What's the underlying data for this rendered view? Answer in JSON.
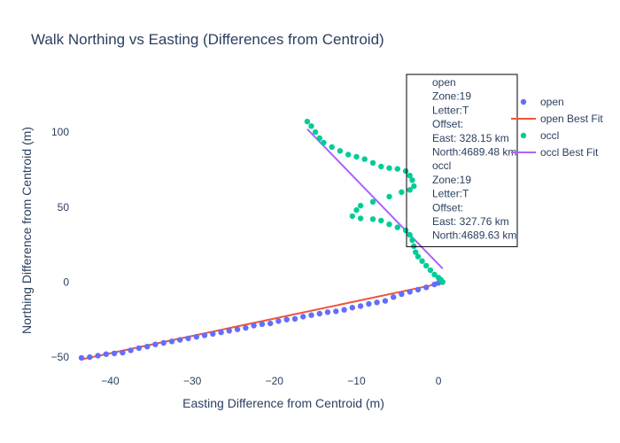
{
  "chart_data": {
    "type": "scatter",
    "title": "Walk Northing vs Easting (Differences from Centroid)",
    "xlabel": "Easting Difference from Centroid (m)",
    "ylabel": "Northing Difference from Centroid (m)",
    "xlim": [
      -44.8,
      7.0
    ],
    "ylim": [
      -60.0,
      129.0
    ],
    "xticks": [
      -40,
      -30,
      -20,
      -10,
      0
    ],
    "yticks": [
      -50,
      0,
      50,
      100
    ],
    "xtick_labels": [
      "−40",
      "−30",
      "−20",
      "−10",
      "0"
    ],
    "ytick_labels": [
      "−50",
      "0",
      "50",
      "100"
    ],
    "grid": false,
    "legend_position": "top-right",
    "series": [
      {
        "name": "open",
        "mode": "markers",
        "color": "#636efa",
        "points": [
          [
            -43.5,
            -50.5
          ],
          [
            -42.5,
            -50.0
          ],
          [
            -41.5,
            -49.0
          ],
          [
            -40.5,
            -48.0
          ],
          [
            -39.5,
            -47.5
          ],
          [
            -38.5,
            -47.0
          ],
          [
            -37.5,
            -45.5
          ],
          [
            -36.5,
            -44.0
          ],
          [
            -35.5,
            -43.0
          ],
          [
            -34.5,
            -41.5
          ],
          [
            -33.5,
            -40.5
          ],
          [
            -32.5,
            -39.5
          ],
          [
            -31.5,
            -38.5
          ],
          [
            -30.5,
            -37.5
          ],
          [
            -29.5,
            -36.5
          ],
          [
            -28.5,
            -35.5
          ],
          [
            -27.5,
            -34.5
          ],
          [
            -26.5,
            -33.5
          ],
          [
            -25.5,
            -32.5
          ],
          [
            -24.5,
            -31.5
          ],
          [
            -23.5,
            -30.5
          ],
          [
            -22.5,
            -29.0
          ],
          [
            -21.5,
            -28.0
          ],
          [
            -20.5,
            -27.5
          ],
          [
            -19.5,
            -26.0
          ],
          [
            -18.5,
            -25.0
          ],
          [
            -17.5,
            -24.5
          ],
          [
            -16.5,
            -23.0
          ],
          [
            -15.5,
            -22.0
          ],
          [
            -14.5,
            -21.0
          ],
          [
            -13.5,
            -20.0
          ],
          [
            -12.5,
            -19.5
          ],
          [
            -11.5,
            -18.5
          ],
          [
            -10.5,
            -17.0
          ],
          [
            -9.5,
            -16.0
          ],
          [
            -8.5,
            -14.5
          ],
          [
            -7.5,
            -13.5
          ],
          [
            -6.5,
            -12.5
          ],
          [
            -5.5,
            -10.0
          ],
          [
            -4.5,
            -8.0
          ],
          [
            -3.5,
            -6.5
          ],
          [
            -2.5,
            -5.0
          ],
          [
            -1.5,
            -3.5
          ],
          [
            -0.5,
            -1.5
          ],
          [
            0.0,
            -0.5
          ]
        ]
      },
      {
        "name": "open Best Fit",
        "mode": "lines",
        "color": "#ef553b",
        "points": [
          [
            -43.5,
            -51.5
          ],
          [
            0.5,
            -0.5
          ]
        ]
      },
      {
        "name": "occl",
        "mode": "markers",
        "color": "#00cc96",
        "points": [
          [
            -16.0,
            107.0
          ],
          [
            -15.5,
            104.0
          ],
          [
            -15.0,
            100.0
          ],
          [
            -14.5,
            96.0
          ],
          [
            -14.0,
            93.0
          ],
          [
            -13.0,
            90.0
          ],
          [
            -12.0,
            87.5
          ],
          [
            -11.0,
            85.0
          ],
          [
            -10.0,
            83.5
          ],
          [
            -9.0,
            82.0
          ],
          [
            -8.0,
            79.5
          ],
          [
            -7.0,
            77.0
          ],
          [
            -6.0,
            76.0
          ],
          [
            -5.0,
            75.5
          ],
          [
            -4.0,
            74.0
          ],
          [
            -3.5,
            71.0
          ],
          [
            -3.2,
            68.0
          ],
          [
            -3.0,
            64.0
          ],
          [
            -3.5,
            61.5
          ],
          [
            -4.5,
            60.0
          ],
          [
            -6.0,
            57.0
          ],
          [
            -8.0,
            53.5
          ],
          [
            -9.5,
            51.0
          ],
          [
            -10.0,
            48.0
          ],
          [
            -10.5,
            44.0
          ],
          [
            -9.5,
            42.5
          ],
          [
            -8.0,
            42.0
          ],
          [
            -7.0,
            41.0
          ],
          [
            -6.0,
            38.5
          ],
          [
            -5.0,
            36.5
          ],
          [
            -4.0,
            34.5
          ],
          [
            -3.5,
            31.5
          ],
          [
            -3.2,
            28.0
          ],
          [
            -3.0,
            24.0
          ],
          [
            -2.8,
            20.0
          ],
          [
            -2.5,
            17.0
          ],
          [
            -2.0,
            14.0
          ],
          [
            -1.5,
            11.0
          ],
          [
            -1.0,
            8.0
          ],
          [
            -0.5,
            5.0
          ],
          [
            0.0,
            3.0
          ],
          [
            0.3,
            1.5
          ],
          [
            0.5,
            0.0
          ]
        ]
      },
      {
        "name": "occl Best Fit",
        "mode": "lines",
        "color": "#ab63fa",
        "points": [
          [
            -16.0,
            102.0
          ],
          [
            0.5,
            9.0
          ]
        ]
      }
    ],
    "annotation": {
      "lines": [
        "open",
        "Zone:19",
        "Letter:T",
        "Offset:",
        "East: 328.15 km",
        "North:4689.48 km",
        "occl",
        "Zone:19",
        "Letter:T",
        "Offset:",
        "East: 327.76 km",
        "North:4689.63 km"
      ]
    }
  }
}
